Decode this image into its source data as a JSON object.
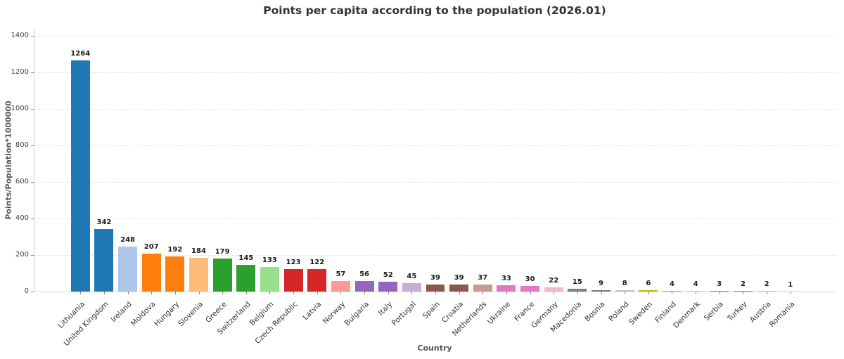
{
  "chart_data": {
    "type": "bar",
    "title": "Points per capita according to the population (2026.01)",
    "xlabel": "Country",
    "ylabel": "Points/Population*1000000",
    "ylim": [
      0,
      1435
    ],
    "yticks": [
      0,
      200,
      400,
      600,
      800,
      1000,
      1200,
      1400
    ],
    "grid": "horizontal dotted gridlines",
    "legend_position": "none",
    "bar_value_labels": true,
    "categories": [
      "Lithuania",
      "United Kingdom",
      "Ireland",
      "Moldova",
      "Hungary",
      "Slovenia",
      "Greece",
      "Switzerland",
      "Belgium",
      "Czech Republic",
      "Latvia",
      "Norway",
      "Bulgaria",
      "Italy",
      "Portugal",
      "Spain",
      "Croatia",
      "Netherlands",
      "Ukraine",
      "France",
      "Germany",
      "Macedonia",
      "Bosnia",
      "Poland",
      "Sweden",
      "Finland",
      "Denmark",
      "Serbia",
      "Turkey",
      "Austria",
      "Romania"
    ],
    "values": [
      1264,
      342,
      248,
      207,
      192,
      184,
      179,
      145,
      133,
      123,
      122,
      57,
      56,
      52,
      45,
      39,
      39,
      37,
      33,
      30,
      22,
      15,
      9,
      8,
      6,
      4,
      4,
      3,
      2,
      2,
      1
    ],
    "colors": [
      "#1f77b4",
      "#1f77b4",
      "#aec7e8",
      "#ff7f0e",
      "#ff7f0e",
      "#ffbb78",
      "#2ca02c",
      "#2ca02c",
      "#98df8a",
      "#d62728",
      "#d62728",
      "#ff9896",
      "#9467bd",
      "#9467bd",
      "#c5b0d5",
      "#8c564b",
      "#8c564b",
      "#c49c94",
      "#e377c2",
      "#e377c2",
      "#f7b6d2",
      "#7f7f7f",
      "#7f7f7f",
      "#c7c7c7",
      "#bcbd22",
      "#bcbd22",
      "#dbdb8d",
      "#17becf",
      "#17becf",
      "#9edae5",
      "#9edae5"
    ],
    "title_color": "#333333",
    "grid_color": "#e3e3e3",
    "background": "#ffffff"
  }
}
